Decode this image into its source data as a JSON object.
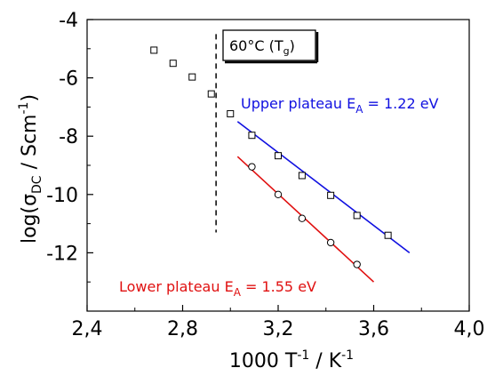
{
  "chart_data": {
    "type": "scatter",
    "title": "",
    "xlabel": {
      "base": "1000 T",
      "exp1": "-1",
      "mid": " / K",
      "exp2": "-1"
    },
    "ylabel": {
      "pre": "log(σ",
      "sub": "DC",
      "mid": " / Scm",
      "sup": "-1",
      "post": ")"
    },
    "xlim": [
      2.4,
      4.0
    ],
    "ylim": [
      -14,
      -4
    ],
    "x_ticks": [
      2.4,
      2.8,
      3.2,
      3.6,
      4.0
    ],
    "x_tick_labels": [
      "2,4",
      "2,8",
      "3,2",
      "3,6",
      "4,0"
    ],
    "y_ticks": [
      -4,
      -6,
      -8,
      -10,
      -12
    ],
    "y_tick_labels": [
      "-4",
      "-6",
      "-8",
      "-10",
      "-12"
    ],
    "grid": false,
    "series": [
      {
        "marker": "square",
        "color": "#000000",
        "x": [
          2.68,
          2.76,
          2.84,
          2.92,
          3.0,
          3.09,
          3.2,
          3.3,
          3.42,
          3.53,
          3.66
        ],
        "y": [
          -5.05,
          -5.5,
          -5.97,
          -6.55,
          -7.23,
          -7.97,
          -8.67,
          -9.35,
          -10.03,
          -10.72,
          -11.4
        ]
      },
      {
        "marker": "circle",
        "color": "#000000",
        "x": [
          3.09,
          3.2,
          3.3,
          3.42,
          3.53
        ],
        "y": [
          -9.05,
          -10.0,
          -10.82,
          -11.65,
          -12.4
        ]
      }
    ],
    "fit_lines": [
      {
        "color": "#1010e0",
        "x": [
          3.03,
          3.75
        ],
        "y": [
          -7.5,
          -12.0
        ]
      },
      {
        "color": "#e01010",
        "x": [
          3.03,
          3.6
        ],
        "y": [
          -8.7,
          -13.0
        ]
      }
    ],
    "vline": {
      "x": 2.94,
      "y": [
        -4.5,
        -11.3
      ],
      "style": "dashed",
      "color": "#000000"
    },
    "annotations": [
      {
        "id": "tg",
        "text": "60°C (T",
        "sub": "g",
        "post": ")",
        "boxed": true
      },
      {
        "id": "upper",
        "text": "Upper plateau E",
        "sub": "A",
        "post": " = 1.22 eV",
        "color": "#1010e0"
      },
      {
        "id": "lower",
        "text": "Lower plateau E",
        "sub": "A",
        "post": " = 1.55 eV",
        "color": "#e01010"
      }
    ]
  }
}
